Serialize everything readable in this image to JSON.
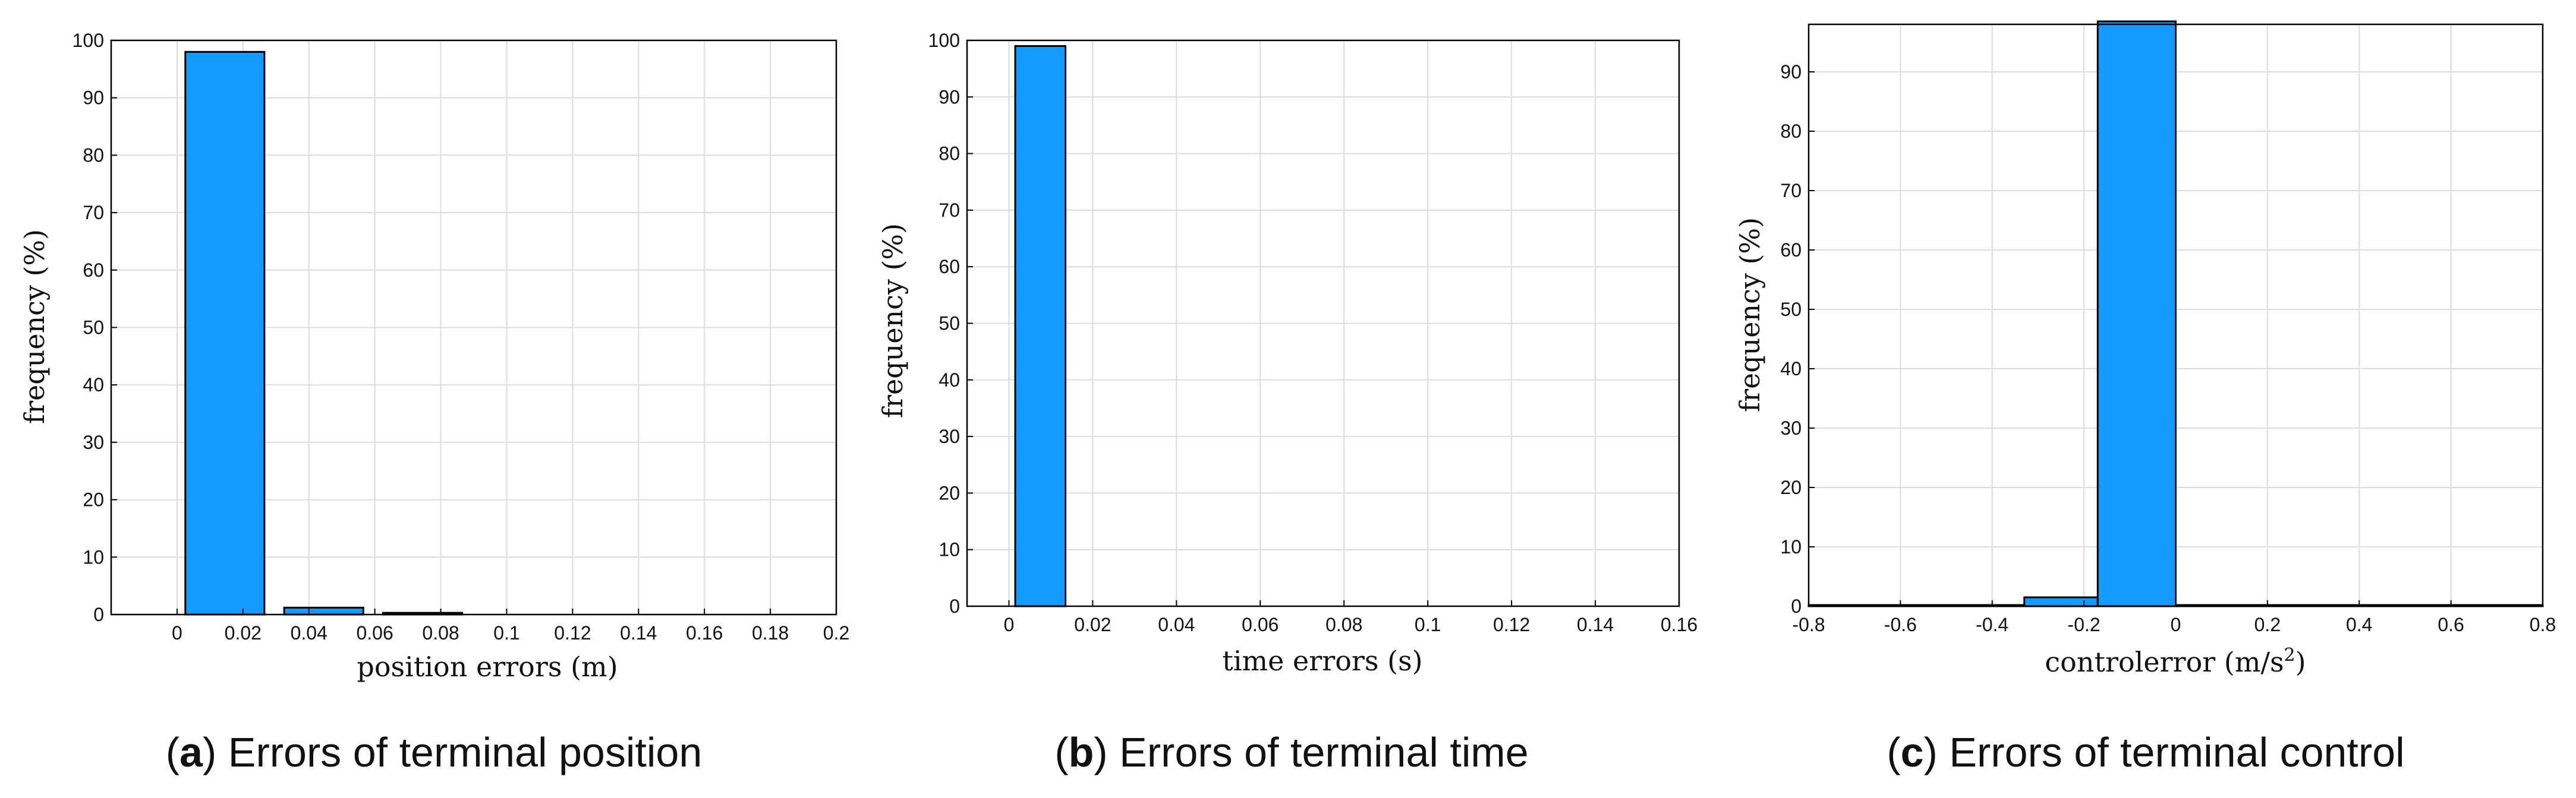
{
  "chart_data": [
    {
      "type": "bar",
      "caption_letter": "a",
      "caption_text": "Errors of terminal position",
      "xlabel": "position errors (m)",
      "ylabel": "frequency (%)",
      "xlim": [
        -0.02,
        0.2
      ],
      "ylim": [
        0,
        100
      ],
      "xticks": [
        "0",
        "0.02",
        "0.04",
        "0.06",
        "0.08",
        "0.1",
        "0.12",
        "0.14",
        "0.16",
        "0.18",
        "0.2"
      ],
      "yticks": [
        "0",
        "10",
        "20",
        "30",
        "40",
        "50",
        "60",
        "70",
        "80",
        "90",
        "100"
      ],
      "grid": true,
      "bin_edges": [
        0.0025,
        0.0265,
        0.0325,
        0.0565,
        0.0625,
        0.0865
      ],
      "bars": [
        {
          "x0": 0.0025,
          "x1": 0.0265,
          "value": 98
        },
        {
          "x0": 0.0325,
          "x1": 0.0565,
          "value": 1.2
        },
        {
          "x0": 0.0625,
          "x1": 0.0865,
          "value": 0.3
        }
      ]
    },
    {
      "type": "bar",
      "caption_letter": "b",
      "caption_text": "Errors of terminal time",
      "xlabel": "time errors (s)",
      "ylabel": "frequency (%)",
      "xlim": [
        -0.01,
        0.16
      ],
      "ylim": [
        0,
        100
      ],
      "xticks": [
        "0",
        "0.02",
        "0.04",
        "0.06",
        "0.08",
        "0.1",
        "0.12",
        "0.14",
        "0.16"
      ],
      "yticks": [
        "0",
        "10",
        "20",
        "30",
        "40",
        "50",
        "60",
        "70",
        "80",
        "90",
        "100"
      ],
      "grid": true,
      "bars": [
        {
          "x0": 0.0015,
          "x1": 0.0135,
          "value": 99
        }
      ]
    },
    {
      "type": "bar",
      "caption_letter": "c",
      "caption_text": "Errors of terminal control",
      "xlabel": "controlerror (m/s",
      "xlabel_sup": "2",
      "xlabel_end": ")",
      "ylabel": "frequency (%)",
      "xlim": [
        -0.8,
        0.8
      ],
      "ylim": [
        0,
        98
      ],
      "xticks": [
        "-0.8",
        "-0.6",
        "-0.4",
        "-0.2",
        "0",
        "0.2",
        "0.4",
        "0.6",
        "0.8"
      ],
      "yticks": [
        "0",
        "10",
        "20",
        "30",
        "40",
        "50",
        "60",
        "70",
        "80",
        "90"
      ],
      "grid": true,
      "bars": [
        {
          "x0": -0.8,
          "x1": -0.33,
          "value": 0.2
        },
        {
          "x0": -0.33,
          "x1": -0.17,
          "value": 1.5
        },
        {
          "x0": -0.17,
          "x1": 0.0,
          "value": 98.5
        },
        {
          "x0": 0.0,
          "x1": 0.8,
          "value": 0.2
        }
      ]
    }
  ],
  "colors": {
    "bar_fill": "#1499ff",
    "bar_edge": "#000000",
    "grid": "#dcdcdc",
    "axis": "#000000"
  }
}
